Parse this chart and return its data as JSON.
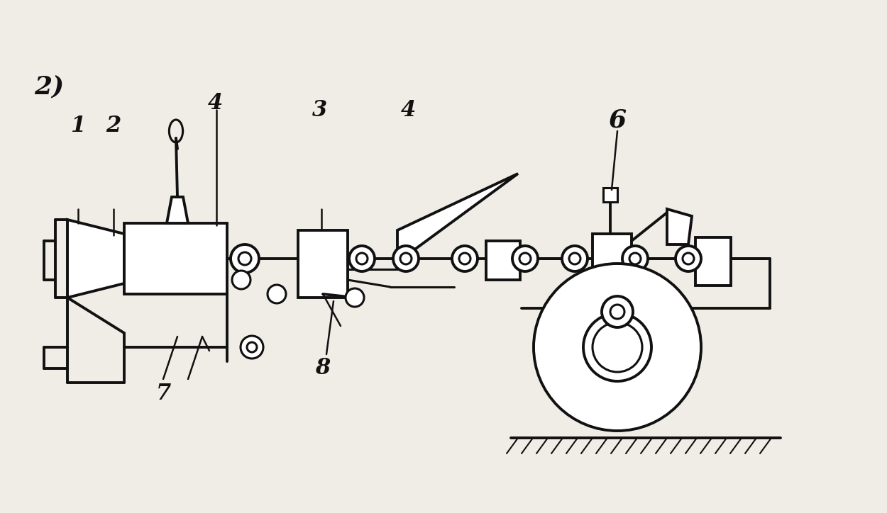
{
  "bg_color": "#f0ede6",
  "line_color": "#111111",
  "lw": 2.2,
  "lw_thick": 2.8
}
